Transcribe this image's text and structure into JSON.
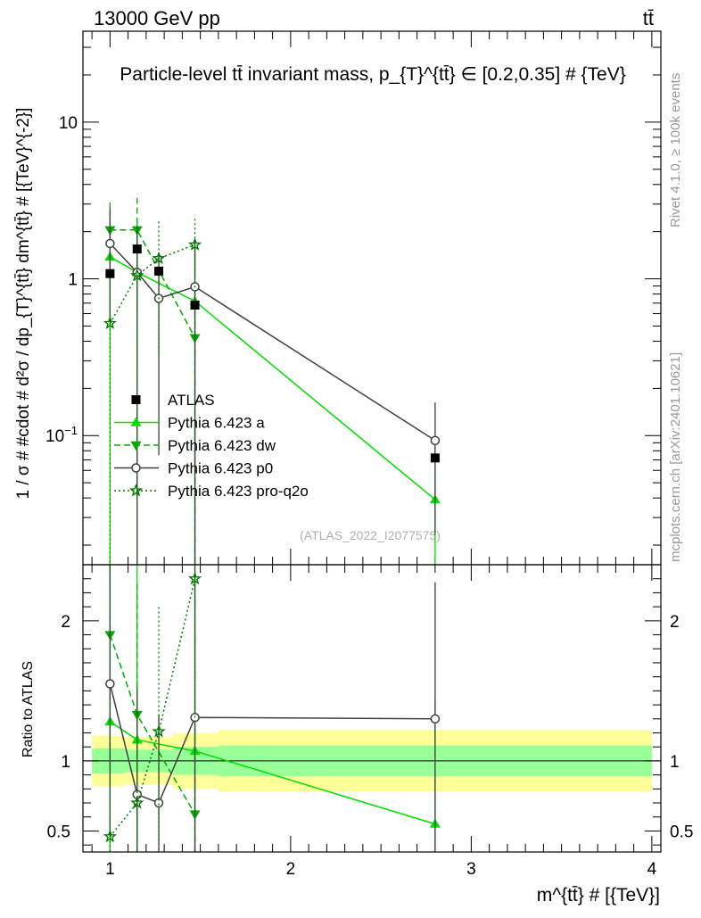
{
  "header": {
    "energy_label": "13000 GeV pp",
    "process_label": "tt̄"
  },
  "side_labels": {
    "rivet": "Rivet 4.1.0, ≥ 100k events",
    "source": "mcplots.cern.ch [arXiv:2401.10621]"
  },
  "chart_data": {
    "type": "line",
    "title": "Particle-level tt̄ invariant mass, p_{T}^{tt̄} ∈ [0.2,0.35] # {TeV}",
    "watermark": "(ATLAS_2022_I2077575)",
    "xlabel": "m^{tt̄} # [{TeV}]",
    "ylabel": "1 / σ # #cdot # d²σ / dp_{T}^{tt̄} dm^{tt̄} # [{TeV}^{-2}]",
    "ratio_ylabel": "Ratio to ATLAS",
    "xlim": [
      0.85,
      4.05
    ],
    "ylim": [
      0.015,
      38
    ],
    "yscale": "log",
    "ratio_ylim": [
      0.35,
      2.4
    ],
    "x_ticks": [
      "1",
      "2",
      "3",
      "4"
    ],
    "y_ticks": [
      "10^{-1}",
      "1",
      "10"
    ],
    "ratio_y_ticks": [
      "0.5",
      "1",
      "2"
    ],
    "legend_position": "center-left",
    "data": {
      "name": "ATLAS",
      "bins": [
        [
          0.9,
          1.08
        ],
        [
          1.08,
          1.2
        ],
        [
          1.2,
          1.35
        ],
        [
          1.35,
          1.6
        ],
        [
          1.6,
          4.0
        ]
      ],
      "x": [
        1.0,
        1.15,
        1.27,
        1.47,
        2.8
      ],
      "y": [
        1.08,
        1.55,
        1.12,
        0.68,
        0.072
      ],
      "stat_rel": [
        0.09,
        0.08,
        0.08,
        0.1,
        0.11
      ],
      "total_rel": [
        0.18,
        0.17,
        0.17,
        0.2,
        0.22
      ]
    },
    "series": [
      {
        "name": "Pythia 6.423 a",
        "color": "#00dd00",
        "dash": "solid",
        "marker": "triangle-up",
        "x": [
          1.0,
          1.15,
          1.47,
          2.8
        ],
        "y": [
          1.38,
          1.1,
          0.72,
          0.039
        ],
        "yerr_rel": [
          1.0,
          1.1,
          1.2,
          1.6
        ],
        "ratio": [
          1.28,
          1.15,
          1.07,
          0.55
        ]
      },
      {
        "name": "Pythia 6.423 dw",
        "color": "#00aa00",
        "dash": "dashed",
        "marker": "triangle-down",
        "x": [
          1.0,
          1.15,
          1.47
        ],
        "y": [
          2.05,
          2.05,
          0.42
        ],
        "yerr_rel": [
          0.5,
          0.7,
          1.0
        ],
        "ratio": [
          1.9,
          1.33,
          0.62
        ]
      },
      {
        "name": "Pythia 6.423 p0",
        "color": "#404040",
        "dash": "solid",
        "marker": "circle-open",
        "x": [
          1.0,
          1.15,
          1.27,
          1.47,
          2.8
        ],
        "y": [
          1.68,
          1.1,
          0.75,
          0.89,
          0.093
        ],
        "yerr_rel": [
          0.7,
          1.0,
          0.9,
          1.0,
          0.75
        ],
        "ratio": [
          1.55,
          0.76,
          0.7,
          1.31,
          1.3
        ]
      },
      {
        "name": "Pythia 6.423 pro-q2o",
        "color": "#007700",
        "dash": "dotted",
        "marker": "star",
        "x": [
          1.0,
          1.15,
          1.27,
          1.47
        ],
        "y": [
          0.52,
          1.05,
          1.35,
          1.65
        ],
        "yerr_rel": [
          1.2,
          0.9,
          0.75,
          0.5
        ],
        "ratio": [
          0.46,
          0.7,
          1.21,
          2.3
        ]
      }
    ]
  }
}
